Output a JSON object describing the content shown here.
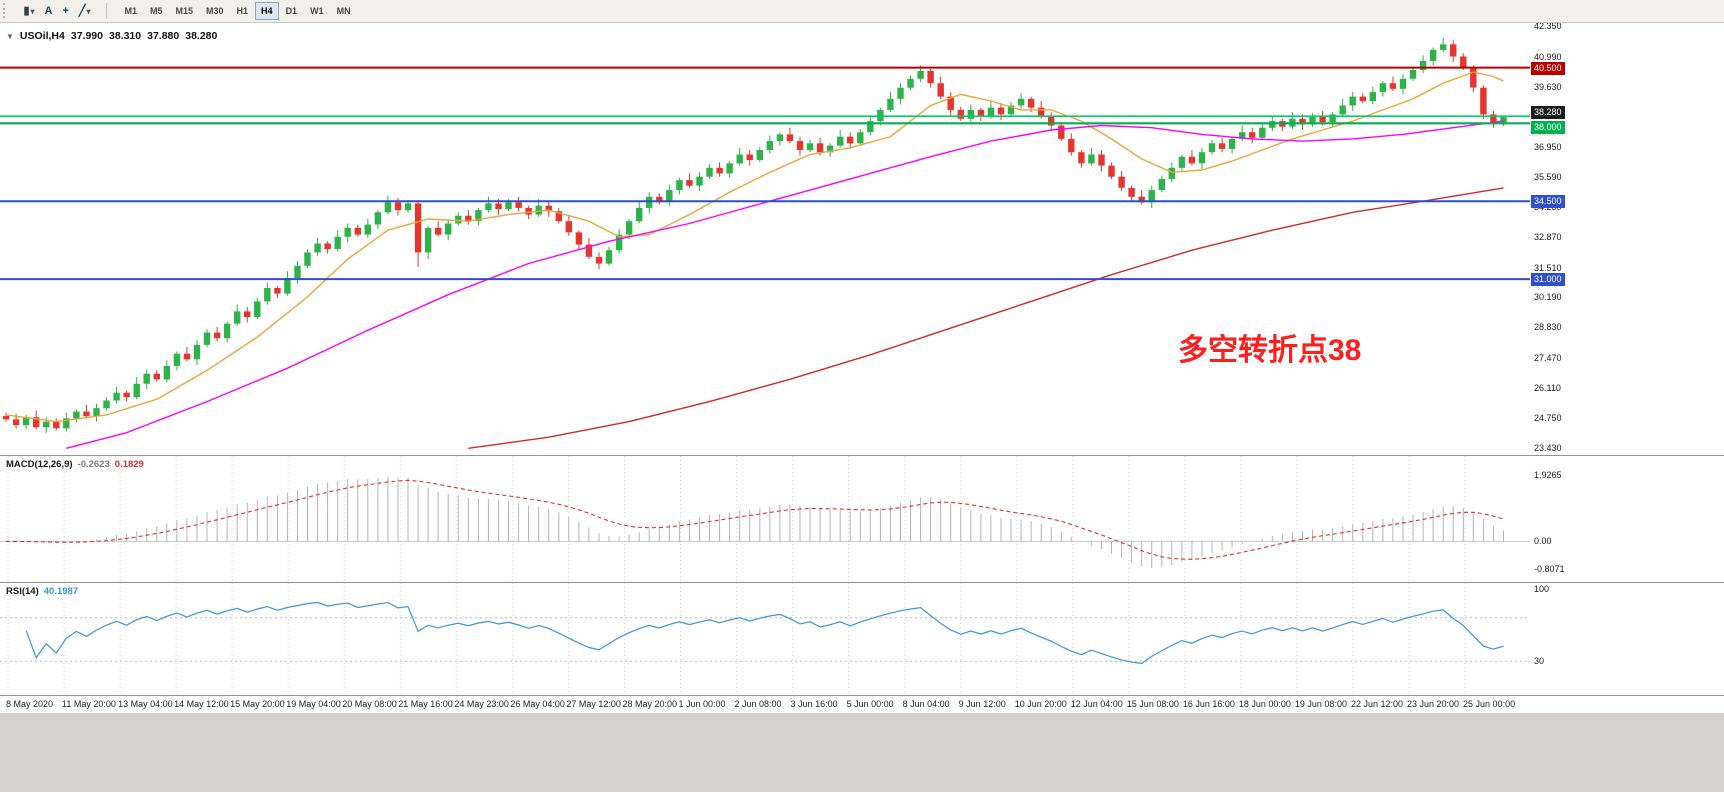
{
  "toolbar": {
    "tools": [
      {
        "name": "chart-type-button",
        "glyph": "▮",
        "dropdown": true
      },
      {
        "name": "text-tool-button",
        "glyph": "A",
        "dropdown": false
      },
      {
        "name": "crosshair-tool-button",
        "glyph": "+",
        "dropdown": false
      },
      {
        "name": "draw-tools-button",
        "glyph": "╱",
        "dropdown": true
      }
    ],
    "timeframes": [
      {
        "label": "M1",
        "active": false
      },
      {
        "label": "M5",
        "active": false
      },
      {
        "label": "M15",
        "active": false
      },
      {
        "label": "M30",
        "active": false
      },
      {
        "label": "H1",
        "active": false
      },
      {
        "label": "H4",
        "active": true
      },
      {
        "label": "D1",
        "active": false
      },
      {
        "label": "W1",
        "active": false
      },
      {
        "label": "MN",
        "active": false
      }
    ]
  },
  "symbol_header": {
    "collapse_glyph": "▼",
    "title": "USOil,H4",
    "open": "37.990",
    "high": "38.310",
    "low": "37.880",
    "close": "38.280"
  },
  "annotation": {
    "text": "多空转折点38",
    "color": "#ff1e1e"
  },
  "price_axis": {
    "labels": [
      "42.350",
      "40.990",
      "39.630",
      "36.950",
      "35.590",
      "34.230",
      "32.870",
      "31.510",
      "30.190",
      "28.830",
      "27.470",
      "26.110",
      "24.750",
      "23.430"
    ],
    "current": {
      "label": "38.280",
      "price": 38.28,
      "bg": "#1c1c1c",
      "dy": -11
    }
  },
  "hlines": [
    {
      "price": 40.5,
      "label": "40.500",
      "color": "#b80000",
      "width": 2,
      "tag_dy": -6
    },
    {
      "price": 38.32,
      "label": "",
      "color": "#00d06a",
      "width": 1.6,
      "tag_dy": 0
    },
    {
      "price": 38.0,
      "label": "38.000",
      "color": "#00b050",
      "width": 2.2,
      "tag_dy": -2
    },
    {
      "price": 34.5,
      "label": "34.500",
      "color": "#2e50c8",
      "width": 2,
      "tag_dy": -6
    },
    {
      "price": 31.0,
      "label": "31.000",
      "color": "#2e50c8",
      "width": 2,
      "tag_dy": -6
    }
  ],
  "chart_data": {
    "type": "candlestick",
    "symbol": "USOil",
    "timeframe": "H4",
    "ylim": [
      23.1,
      42.55
    ],
    "up_color": "#2eb24a",
    "down_color": "#e6352e",
    "x_labels": [
      "8 May 2020",
      "11 May 20:00",
      "13 May 04:00",
      "14 May 12:00",
      "15 May 20:00",
      "19 May 04:00",
      "20 May 08:00",
      "21 May 16:00",
      "24 May 23:00",
      "26 May 04:00",
      "27 May 12:00",
      "28 May 20:00",
      "1 Jun 00:00",
      "2 Jun 08:00",
      "3 Jun 16:00",
      "5 Jun 00:00",
      "8 Jun 04:00",
      "9 Jun 12:00",
      "10 Jun 20:00",
      "12 Jun 04:00",
      "15 Jun 08:00",
      "16 Jun 16:00",
      "18 Jun 00:00",
      "19 Jun 08:00",
      "22 Jun 12:00",
      "23 Jun 20:00",
      "25 Jun 00:00"
    ],
    "candles": [
      [
        24.85,
        25.0,
        24.6,
        24.7
      ],
      [
        24.7,
        24.95,
        24.3,
        24.45
      ],
      [
        24.45,
        24.9,
        24.25,
        24.8
      ],
      [
        24.8,
        25.1,
        24.25,
        24.35
      ],
      [
        24.35,
        24.8,
        24.1,
        24.6
      ],
      [
        24.6,
        24.75,
        24.2,
        24.3
      ],
      [
        24.3,
        25.0,
        24.15,
        24.75
      ],
      [
        24.75,
        25.15,
        24.55,
        25.05
      ],
      [
        25.05,
        25.35,
        24.75,
        24.85
      ],
      [
        24.85,
        25.4,
        24.6,
        25.2
      ],
      [
        25.2,
        25.7,
        25.1,
        25.55
      ],
      [
        25.55,
        26.15,
        25.4,
        25.9
      ],
      [
        25.9,
        26.0,
        25.5,
        25.7
      ],
      [
        25.7,
        26.6,
        25.6,
        26.3
      ],
      [
        26.3,
        26.95,
        26.05,
        26.75
      ],
      [
        26.75,
        26.9,
        26.4,
        26.5
      ],
      [
        26.5,
        27.35,
        26.35,
        27.1
      ],
      [
        27.1,
        27.75,
        26.9,
        27.65
      ],
      [
        27.65,
        27.95,
        27.3,
        27.4
      ],
      [
        27.4,
        28.25,
        27.15,
        28.05
      ],
      [
        28.05,
        28.75,
        27.95,
        28.6
      ],
      [
        28.6,
        28.85,
        28.2,
        28.35
      ],
      [
        28.35,
        29.1,
        28.15,
        29.0
      ],
      [
        29.0,
        29.85,
        28.9,
        29.55
      ],
      [
        29.55,
        29.75,
        29.05,
        29.3
      ],
      [
        29.3,
        30.15,
        29.2,
        30.0
      ],
      [
        30.0,
        30.85,
        29.85,
        30.6
      ],
      [
        30.6,
        30.7,
        30.15,
        30.35
      ],
      [
        30.35,
        31.35,
        30.25,
        31.05
      ],
      [
        31.05,
        31.8,
        30.8,
        31.6
      ],
      [
        31.6,
        32.35,
        31.5,
        32.2
      ],
      [
        32.2,
        32.85,
        32.05,
        32.6
      ],
      [
        32.6,
        32.7,
        32.15,
        32.35
      ],
      [
        32.35,
        33.2,
        32.25,
        32.9
      ],
      [
        32.9,
        33.5,
        32.65,
        33.3
      ],
      [
        33.3,
        33.45,
        32.9,
        33.0
      ],
      [
        33.0,
        33.7,
        32.85,
        33.45
      ],
      [
        33.45,
        34.1,
        33.25,
        34.0
      ],
      [
        34.0,
        34.75,
        33.9,
        34.45
      ],
      [
        34.45,
        34.65,
        33.85,
        34.1
      ],
      [
        34.1,
        34.55,
        34.0,
        34.4
      ],
      [
        34.4,
        34.55,
        31.55,
        32.2
      ],
      [
        32.2,
        33.4,
        31.9,
        33.3
      ],
      [
        33.3,
        33.6,
        32.9,
        33.0
      ],
      [
        33.0,
        33.7,
        32.75,
        33.5
      ],
      [
        33.5,
        34.0,
        33.4,
        33.85
      ],
      [
        33.85,
        34.1,
        33.45,
        33.6
      ],
      [
        33.6,
        34.2,
        33.4,
        34.1
      ],
      [
        34.1,
        34.7,
        34.0,
        34.4
      ],
      [
        34.4,
        34.6,
        33.9,
        34.15
      ],
      [
        34.15,
        34.6,
        34.05,
        34.45
      ],
      [
        34.45,
        34.7,
        34.05,
        34.2
      ],
      [
        34.2,
        34.3,
        33.7,
        33.9
      ],
      [
        33.9,
        34.6,
        33.8,
        34.3
      ],
      [
        34.3,
        34.5,
        33.8,
        34.05
      ],
      [
        34.05,
        34.2,
        33.5,
        33.6
      ],
      [
        33.6,
        33.85,
        32.95,
        33.1
      ],
      [
        33.1,
        33.2,
        32.35,
        32.55
      ],
      [
        32.55,
        32.85,
        31.9,
        32.0
      ],
      [
        32.0,
        32.2,
        31.45,
        31.7
      ],
      [
        31.7,
        32.45,
        31.6,
        32.3
      ],
      [
        32.3,
        33.25,
        32.15,
        33.0
      ],
      [
        33.0,
        33.7,
        32.8,
        33.6
      ],
      [
        33.6,
        34.5,
        33.5,
        34.2
      ],
      [
        34.2,
        34.9,
        33.95,
        34.7
      ],
      [
        34.7,
        34.85,
        34.35,
        34.45
      ],
      [
        34.45,
        35.25,
        34.3,
        35.0
      ],
      [
        35.0,
        35.55,
        34.8,
        35.45
      ],
      [
        35.45,
        35.75,
        35.1,
        35.2
      ],
      [
        35.2,
        35.8,
        34.95,
        35.6
      ],
      [
        35.6,
        36.15,
        35.5,
        36.0
      ],
      [
        36.0,
        36.25,
        35.6,
        35.75
      ],
      [
        35.75,
        36.3,
        35.55,
        36.2
      ],
      [
        36.2,
        36.9,
        36.1,
        36.6
      ],
      [
        36.6,
        36.8,
        36.1,
        36.35
      ],
      [
        36.35,
        36.95,
        36.25,
        36.8
      ],
      [
        36.8,
        37.45,
        36.65,
        37.2
      ],
      [
        37.2,
        37.6,
        37.0,
        37.5
      ],
      [
        37.5,
        37.8,
        37.1,
        37.2
      ],
      [
        37.2,
        37.4,
        36.55,
        36.8
      ],
      [
        36.8,
        37.25,
        36.7,
        37.1
      ],
      [
        37.1,
        37.35,
        36.55,
        36.7
      ],
      [
        36.7,
        37.1,
        36.5,
        37.0
      ],
      [
        37.0,
        37.7,
        36.9,
        37.4
      ],
      [
        37.4,
        37.6,
        36.85,
        37.1
      ],
      [
        37.1,
        37.75,
        37.0,
        37.6
      ],
      [
        37.6,
        38.35,
        37.45,
        38.1
      ],
      [
        38.1,
        38.7,
        37.9,
        38.6
      ],
      [
        38.6,
        39.4,
        38.5,
        39.1
      ],
      [
        39.1,
        39.8,
        38.85,
        39.6
      ],
      [
        39.6,
        40.15,
        39.5,
        40.0
      ],
      [
        40.0,
        40.6,
        39.85,
        40.35
      ],
      [
        40.35,
        40.45,
        39.6,
        39.8
      ],
      [
        39.8,
        40.1,
        39.1,
        39.2
      ],
      [
        39.2,
        39.4,
        38.35,
        38.6
      ],
      [
        38.6,
        38.75,
        38.1,
        38.2
      ],
      [
        38.2,
        38.85,
        38.05,
        38.6
      ],
      [
        38.6,
        38.7,
        38.1,
        38.3
      ],
      [
        38.3,
        39.0,
        38.2,
        38.7
      ],
      [
        38.7,
        38.9,
        38.15,
        38.4
      ],
      [
        38.4,
        38.95,
        38.3,
        38.8
      ],
      [
        38.8,
        39.35,
        38.65,
        39.1
      ],
      [
        39.1,
        39.2,
        38.5,
        38.7
      ],
      [
        38.7,
        39.0,
        38.2,
        38.3
      ],
      [
        38.3,
        38.5,
        37.65,
        37.9
      ],
      [
        37.9,
        38.05,
        37.2,
        37.3
      ],
      [
        37.3,
        37.55,
        36.55,
        36.7
      ],
      [
        36.7,
        36.8,
        36.0,
        36.2
      ],
      [
        36.2,
        36.9,
        36.1,
        36.6
      ],
      [
        36.6,
        36.8,
        35.85,
        36.1
      ],
      [
        36.1,
        36.25,
        35.5,
        35.6
      ],
      [
        35.6,
        35.85,
        34.95,
        35.1
      ],
      [
        35.1,
        35.2,
        34.5,
        34.7
      ],
      [
        34.7,
        35.0,
        34.35,
        34.45
      ],
      [
        34.45,
        35.2,
        34.2,
        35.0
      ],
      [
        35.0,
        35.65,
        34.9,
        35.5
      ],
      [
        35.5,
        36.25,
        35.35,
        36.0
      ],
      [
        36.0,
        36.6,
        35.8,
        36.5
      ],
      [
        36.5,
        36.8,
        36.1,
        36.2
      ],
      [
        36.2,
        36.9,
        35.95,
        36.7
      ],
      [
        36.7,
        37.25,
        36.6,
        37.1
      ],
      [
        37.1,
        37.35,
        36.7,
        36.85
      ],
      [
        36.85,
        37.4,
        36.65,
        37.3
      ],
      [
        37.3,
        37.9,
        37.2,
        37.6
      ],
      [
        37.6,
        37.8,
        37.1,
        37.35
      ],
      [
        37.35,
        37.95,
        37.25,
        37.8
      ],
      [
        37.8,
        38.35,
        37.65,
        38.1
      ],
      [
        38.1,
        38.2,
        37.65,
        37.85
      ],
      [
        37.85,
        38.5,
        37.75,
        38.2
      ],
      [
        38.2,
        38.4,
        37.7,
        37.95
      ],
      [
        37.95,
        38.45,
        37.85,
        38.3
      ],
      [
        38.3,
        38.55,
        37.9,
        38.05
      ],
      [
        38.05,
        38.5,
        37.85,
        38.4
      ],
      [
        38.4,
        39.1,
        38.3,
        38.8
      ],
      [
        38.8,
        39.4,
        38.55,
        39.2
      ],
      [
        39.2,
        39.35,
        38.9,
        39.0
      ],
      [
        39.0,
        39.65,
        38.85,
        39.4
      ],
      [
        39.4,
        39.9,
        39.2,
        39.8
      ],
      [
        39.8,
        40.1,
        39.45,
        39.55
      ],
      [
        39.55,
        40.2,
        39.3,
        40.0
      ],
      [
        40.0,
        40.55,
        39.9,
        40.4
      ],
      [
        40.4,
        41.05,
        40.25,
        40.8
      ],
      [
        40.8,
        41.4,
        40.6,
        41.3
      ],
      [
        41.3,
        41.85,
        41.2,
        41.55
      ],
      [
        41.55,
        41.75,
        40.75,
        41.0
      ],
      [
        41.0,
        41.15,
        40.4,
        40.5
      ],
      [
        40.5,
        40.6,
        39.4,
        39.6
      ],
      [
        39.6,
        39.7,
        38.2,
        38.4
      ],
      [
        38.4,
        38.55,
        37.8,
        37.99
      ],
      [
        37.99,
        38.31,
        37.88,
        38.28
      ]
    ],
    "moving_averages": [
      {
        "name": "ma-fast",
        "color": "#eda53c",
        "points": [
          [
            0,
            24.9
          ],
          [
            5,
            24.6
          ],
          [
            10,
            24.9
          ],
          [
            15,
            25.6
          ],
          [
            20,
            26.9
          ],
          [
            25,
            28.4
          ],
          [
            30,
            30.2
          ],
          [
            34,
            31.9
          ],
          [
            38,
            33.2
          ],
          [
            42,
            33.7
          ],
          [
            46,
            33.6
          ],
          [
            50,
            33.9
          ],
          [
            54,
            34.1
          ],
          [
            58,
            33.6
          ],
          [
            61,
            32.9
          ],
          [
            64,
            33.0
          ],
          [
            68,
            33.9
          ],
          [
            72,
            34.9
          ],
          [
            76,
            35.8
          ],
          [
            80,
            36.6
          ],
          [
            84,
            36.9
          ],
          [
            88,
            37.4
          ],
          [
            92,
            38.8
          ],
          [
            95,
            39.3
          ],
          [
            98,
            39.0
          ],
          [
            101,
            38.6
          ],
          [
            104,
            38.6
          ],
          [
            107,
            38.1
          ],
          [
            110,
            37.3
          ],
          [
            113,
            36.4
          ],
          [
            116,
            35.8
          ],
          [
            119,
            35.9
          ],
          [
            122,
            36.3
          ],
          [
            125,
            36.8
          ],
          [
            128,
            37.3
          ],
          [
            131,
            37.7
          ],
          [
            134,
            38.1
          ],
          [
            137,
            38.6
          ],
          [
            140,
            39.1
          ],
          [
            143,
            39.8
          ],
          [
            146,
            40.3
          ],
          [
            148,
            40.1
          ],
          [
            149,
            39.9
          ]
        ]
      },
      {
        "name": "ma-mid",
        "color": "#ff00ff",
        "points": [
          [
            6,
            23.4
          ],
          [
            12,
            24.1
          ],
          [
            20,
            25.5
          ],
          [
            28,
            27.0
          ],
          [
            36,
            28.7
          ],
          [
            44,
            30.3
          ],
          [
            52,
            31.7
          ],
          [
            60,
            32.7
          ],
          [
            68,
            33.5
          ],
          [
            76,
            34.5
          ],
          [
            84,
            35.5
          ],
          [
            92,
            36.5
          ],
          [
            98,
            37.2
          ],
          [
            104,
            37.7
          ],
          [
            109,
            37.9
          ],
          [
            114,
            37.8
          ],
          [
            119,
            37.5
          ],
          [
            124,
            37.3
          ],
          [
            129,
            37.2
          ],
          [
            134,
            37.3
          ],
          [
            139,
            37.5
          ],
          [
            144,
            37.8
          ],
          [
            149,
            38.1
          ]
        ]
      },
      {
        "name": "ma-slow",
        "color": "#d42a2a",
        "points": [
          [
            46,
            23.4
          ],
          [
            54,
            23.9
          ],
          [
            62,
            24.6
          ],
          [
            70,
            25.5
          ],
          [
            78,
            26.5
          ],
          [
            86,
            27.6
          ],
          [
            94,
            28.8
          ],
          [
            102,
            30.0
          ],
          [
            110,
            31.2
          ],
          [
            118,
            32.3
          ],
          [
            126,
            33.2
          ],
          [
            134,
            34.0
          ],
          [
            141,
            34.5
          ],
          [
            149,
            35.1
          ]
        ]
      }
    ]
  },
  "macd": {
    "label": "MACD(12,26,9)",
    "value_main": "-0.2623",
    "value_signal": "0.1829",
    "fast": 12,
    "slow": 26,
    "signal": 9,
    "axis_labels": [
      "1.9265",
      "0.00",
      "-0.8071"
    ],
    "hist_color": "#b4b4b4",
    "signal_color": "#e03030"
  },
  "rsi": {
    "label": "RSI(14)",
    "value": "40.1987",
    "period": 14,
    "axis_labels": [
      "100",
      "30"
    ],
    "levels": [
      70,
      30
    ],
    "line_color": "#3a96dd"
  }
}
